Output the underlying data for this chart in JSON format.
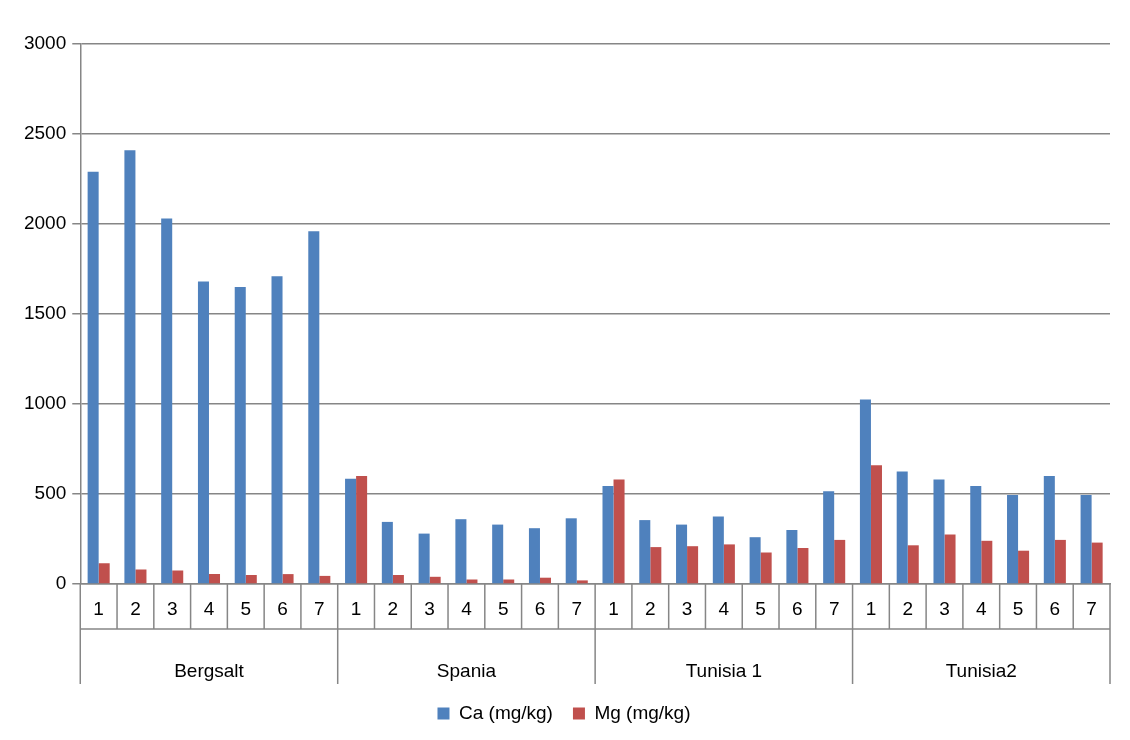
{
  "chart_data": {
    "type": "bar",
    "categories": [
      "1",
      "2",
      "3",
      "4",
      "5",
      "6",
      "7",
      "1",
      "2",
      "3",
      "4",
      "5",
      "6",
      "7",
      "1",
      "2",
      "3",
      "4",
      "5",
      "6",
      "7",
      "1",
      "2",
      "3",
      "4",
      "5",
      "6",
      "7"
    ],
    "series": [
      {
        "name": "Ca (mg/kg)",
        "color": "#4f81bd",
        "values": [
          2290,
          2410,
          2030,
          1680,
          1650,
          1710,
          1960,
          585,
          345,
          280,
          360,
          330,
          310,
          365,
          545,
          355,
          330,
          375,
          260,
          300,
          515,
          1025,
          625,
          580,
          545,
          495,
          600,
          495
        ]
      },
      {
        "name": "Mg (mg/kg)",
        "color": "#c0504d",
        "values": [
          115,
          80,
          75,
          55,
          50,
          55,
          45,
          600,
          50,
          40,
          25,
          25,
          35,
          20,
          580,
          205,
          210,
          220,
          175,
          200,
          245,
          660,
          215,
          275,
          240,
          185,
          245,
          230
        ]
      }
    ],
    "annotations": [
      "Bergsalt",
      "Spania",
      "Tunisia 1",
      "Tunisia2"
    ],
    "ylim": [
      0,
      3000
    ],
    "yticks": [
      0,
      500,
      1000,
      1500,
      2000,
      2500,
      3000
    ],
    "grid": "y",
    "legend": "bottom"
  }
}
